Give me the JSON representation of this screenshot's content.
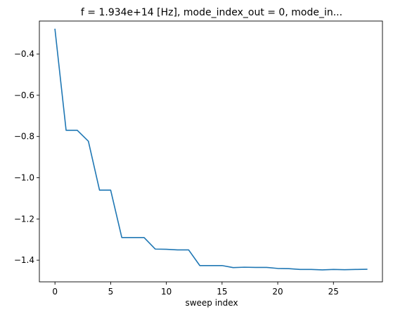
{
  "chart_data": {
    "type": "line",
    "title": "f = 1.934e+14 [Hz], mode_index_out = 0, mode_in...",
    "xlabel": "sweep index",
    "ylabel": "",
    "xlim": [
      -1.4,
      29.4
    ],
    "ylim": [
      -1.505,
      -0.24
    ],
    "xticks": [
      0,
      5,
      10,
      15,
      20,
      25
    ],
    "yticks": [
      -0.4,
      -0.6,
      -0.8,
      -1.0,
      -1.2,
      -1.4
    ],
    "xtick_labels": [
      "0",
      "5",
      "10",
      "15",
      "20",
      "25"
    ],
    "ytick_labels": [
      "−0.4",
      "−0.6",
      "−0.8",
      "−1.0",
      "−1.2",
      "−1.4"
    ],
    "grid": false,
    "series": [
      {
        "color": "#1f77b4",
        "x": [
          0,
          1,
          2,
          3,
          4,
          5,
          6,
          7,
          8,
          9,
          10,
          11,
          12,
          13,
          14,
          15,
          16,
          17,
          18,
          19,
          20,
          21,
          22,
          23,
          24,
          25,
          26,
          27,
          28
        ],
        "y": [
          -0.28,
          -0.77,
          -0.77,
          -0.823,
          -1.06,
          -1.06,
          -1.29,
          -1.29,
          -1.29,
          -1.346,
          -1.347,
          -1.35,
          -1.35,
          -1.426,
          -1.426,
          -1.426,
          -1.436,
          -1.434,
          -1.435,
          -1.435,
          -1.44,
          -1.441,
          -1.445,
          -1.445,
          -1.447,
          -1.445,
          -1.446,
          -1.445,
          -1.444
        ]
      }
    ]
  }
}
